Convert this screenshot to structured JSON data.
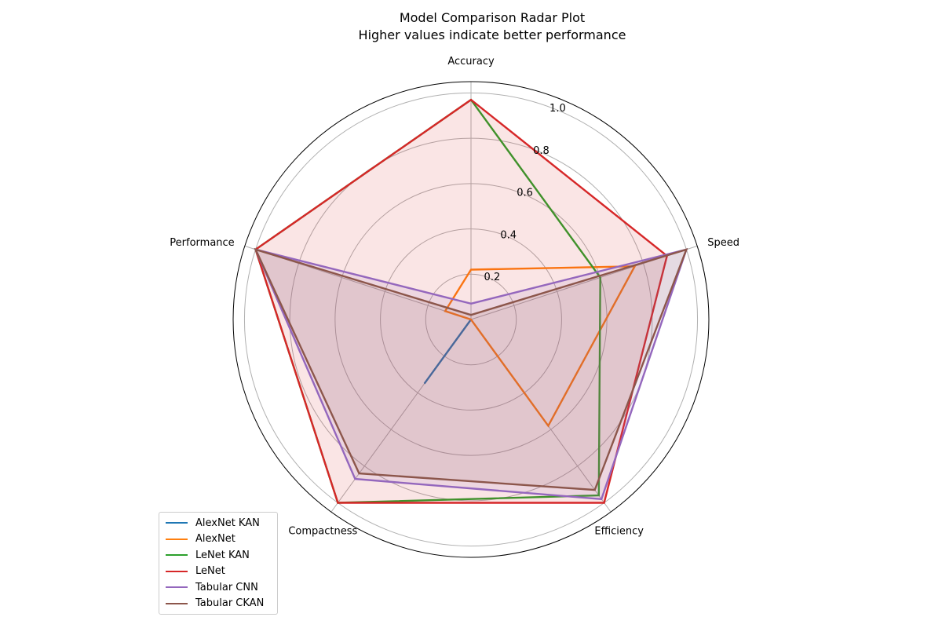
{
  "chart_data": {
    "type": "radar",
    "title": "Model Comparison Radar Plot",
    "subtitle": "Higher values indicate better performance",
    "axes": [
      "Accuracy",
      "Speed",
      "Efficiency",
      "Compactness",
      "Performance"
    ],
    "rlim": [
      0,
      1.05
    ],
    "rticks": [
      0.2,
      0.4,
      0.6,
      0.8,
      1.0
    ],
    "rtick_labels": [
      "0.2",
      "0.4",
      "0.6",
      "0.8",
      "1.0"
    ],
    "grid": true,
    "legend_position": "lower-left",
    "series": [
      {
        "name": "AlexNet KAN",
        "color": "#1f77b4",
        "fill": false,
        "values": [
          0.0,
          0.0,
          0.0,
          0.35,
          0.0
        ]
      },
      {
        "name": "AlexNet",
        "color": "#ff7f0e",
        "fill": false,
        "values": [
          0.22,
          0.76,
          0.58,
          0.0,
          0.12
        ]
      },
      {
        "name": "LeNet KAN",
        "color": "#2ca02c",
        "fill": false,
        "values": [
          0.97,
          0.6,
          0.96,
          1.0,
          1.0
        ]
      },
      {
        "name": "LeNet",
        "color": "#d62728",
        "fill": true,
        "values": [
          0.97,
          0.91,
          1.0,
          1.0,
          1.0
        ]
      },
      {
        "name": "Tabular CNN",
        "color": "#9467bd",
        "fill": true,
        "values": [
          0.07,
          1.0,
          0.98,
          0.87,
          1.0
        ]
      },
      {
        "name": "Tabular CKAN",
        "color": "#8c564b",
        "fill": true,
        "values": [
          0.02,
          1.0,
          0.93,
          0.84,
          1.0
        ]
      }
    ]
  }
}
